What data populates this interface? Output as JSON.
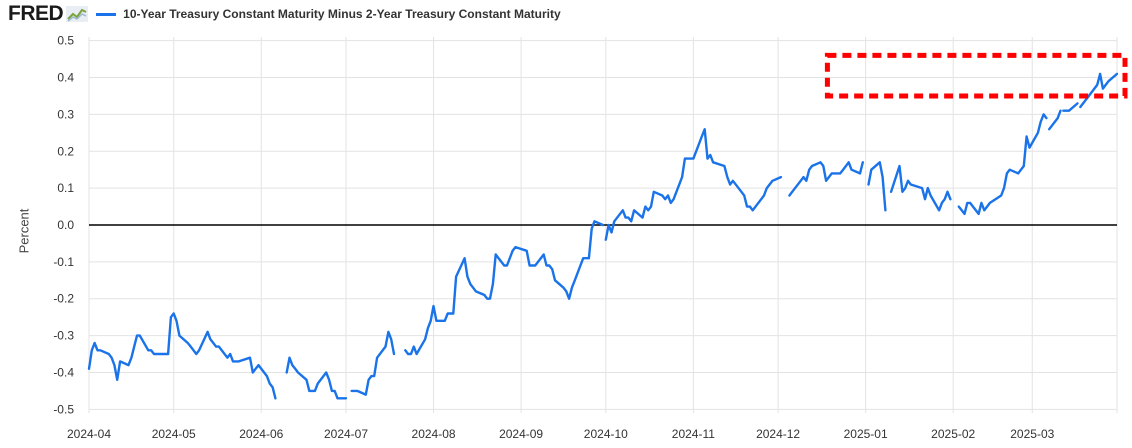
{
  "header": {
    "logo": "FRED",
    "logo_icon": "trend-graph-icon"
  },
  "colors": {
    "series": "#1a73e8",
    "grid": "#e3e3e3",
    "zero_line": "#000000",
    "highlight": "#ff0000"
  },
  "chart_data": {
    "type": "line",
    "title": "",
    "xlabel": "",
    "ylabel": "Percent",
    "ylim": [
      -0.51,
      0.51
    ],
    "xlim": [
      "2024-04-01",
      "2025-03-31"
    ],
    "grid": true,
    "legend": "top-left",
    "zero_line": 0.0,
    "yticks": [
      "0.5",
      "0.4",
      "0.3",
      "0.2",
      "0.1",
      "0.0",
      "-0.1",
      "-0.2",
      "-0.3",
      "-0.4",
      "-0.5"
    ],
    "ytick_values": [
      0.5,
      0.4,
      0.3,
      0.2,
      0.1,
      0.0,
      -0.1,
      -0.2,
      -0.3,
      -0.4,
      -0.5
    ],
    "xticks": [
      "2024-04",
      "2024-05",
      "2024-06",
      "2024-07",
      "2024-08",
      "2024-09",
      "2024-10",
      "2024-11",
      "2024-12",
      "2025-01",
      "2025-02",
      "2025-03"
    ],
    "xtick_dates": [
      "2024-04-01",
      "2024-05-01",
      "2024-06-01",
      "2024-07-01",
      "2024-08-01",
      "2024-09-01",
      "2024-10-01",
      "2024-11-01",
      "2024-12-01",
      "2025-01-01",
      "2025-02-01",
      "2025-03-01"
    ],
    "annotations": [
      {
        "type": "dashed-box",
        "label": "highlighted region",
        "x_start": "2024-12-22",
        "x_end": "2025-03-31",
        "y_low": 0.35,
        "y_high": 0.46
      }
    ],
    "series": [
      {
        "name": "10-Year Treasury Constant Maturity Minus 2-Year Treasury Constant Maturity",
        "points": [
          [
            "2024-04-01",
            -0.39
          ],
          [
            "2024-04-02",
            -0.34
          ],
          [
            "2024-04-03",
            -0.32
          ],
          [
            "2024-04-04",
            -0.34
          ],
          [
            "2024-04-05",
            -0.34
          ],
          [
            "2024-04-08",
            -0.35
          ],
          [
            "2024-04-09",
            -0.36
          ],
          [
            "2024-04-10",
            -0.38
          ],
          [
            "2024-04-11",
            -0.42
          ],
          [
            "2024-04-12",
            -0.37
          ],
          [
            "2024-04-15",
            -0.38
          ],
          [
            "2024-04-16",
            -0.36
          ],
          [
            "2024-04-17",
            -0.33
          ],
          [
            "2024-04-18",
            -0.3
          ],
          [
            "2024-04-19",
            -0.3
          ],
          [
            "2024-04-22",
            -0.34
          ],
          [
            "2024-04-23",
            -0.34
          ],
          [
            "2024-04-24",
            -0.35
          ],
          [
            "2024-04-25",
            -0.35
          ],
          [
            "2024-04-26",
            -0.35
          ],
          [
            "2024-04-29",
            -0.35
          ],
          [
            "2024-04-30",
            -0.25
          ],
          [
            "2024-05-01",
            -0.24
          ],
          [
            "2024-05-02",
            -0.26
          ],
          [
            "2024-05-03",
            -0.3
          ],
          [
            "2024-05-06",
            -0.32
          ],
          [
            "2024-05-07",
            -0.33
          ],
          [
            "2024-05-08",
            -0.34
          ],
          [
            "2024-05-09",
            -0.35
          ],
          [
            "2024-05-10",
            -0.34
          ],
          [
            "2024-05-13",
            -0.29
          ],
          [
            "2024-05-14",
            -0.31
          ],
          [
            "2024-05-15",
            -0.32
          ],
          [
            "2024-05-16",
            -0.33
          ],
          [
            "2024-05-17",
            -0.33
          ],
          [
            "2024-05-20",
            -0.36
          ],
          [
            "2024-05-21",
            -0.35
          ],
          [
            "2024-05-22",
            -0.37
          ],
          [
            "2024-05-23",
            -0.37
          ],
          [
            "2024-05-24",
            -0.37
          ],
          [
            "2024-05-28",
            -0.36
          ],
          [
            "2024-05-29",
            -0.4
          ],
          [
            "2024-05-30",
            -0.39
          ],
          [
            "2024-05-31",
            -0.38
          ],
          [
            "2024-06-03",
            -0.41
          ],
          [
            "2024-06-04",
            -0.43
          ],
          [
            "2024-06-05",
            -0.44
          ],
          [
            "2024-06-06",
            -0.47
          ],
          null,
          [
            "2024-06-10",
            -0.4
          ],
          [
            "2024-06-11",
            -0.36
          ],
          [
            "2024-06-12",
            -0.38
          ],
          [
            "2024-06-13",
            -0.39
          ],
          [
            "2024-06-14",
            -0.4
          ],
          [
            "2024-06-17",
            -0.42
          ],
          [
            "2024-06-18",
            -0.45
          ],
          [
            "2024-06-20",
            -0.45
          ],
          [
            "2024-06-21",
            -0.43
          ],
          [
            "2024-06-24",
            -0.4
          ],
          [
            "2024-06-25",
            -0.42
          ],
          [
            "2024-06-26",
            -0.45
          ],
          [
            "2024-06-27",
            -0.45
          ],
          [
            "2024-06-28",
            -0.47
          ],
          [
            "2024-07-01",
            -0.47
          ],
          null,
          [
            "2024-07-03",
            -0.45
          ],
          [
            "2024-07-05",
            -0.45
          ],
          [
            "2024-07-08",
            -0.46
          ],
          [
            "2024-07-09",
            -0.42
          ],
          [
            "2024-07-10",
            -0.41
          ],
          [
            "2024-07-11",
            -0.41
          ],
          [
            "2024-07-12",
            -0.36
          ],
          [
            "2024-07-15",
            -0.33
          ],
          [
            "2024-07-16",
            -0.29
          ],
          [
            "2024-07-17",
            -0.31
          ],
          [
            "2024-07-18",
            -0.35
          ],
          null,
          [
            "2024-07-22",
            -0.34
          ],
          [
            "2024-07-23",
            -0.35
          ],
          [
            "2024-07-24",
            -0.35
          ],
          [
            "2024-07-25",
            -0.33
          ],
          [
            "2024-07-26",
            -0.35
          ],
          [
            "2024-07-29",
            -0.31
          ],
          [
            "2024-07-30",
            -0.28
          ],
          [
            "2024-07-31",
            -0.26
          ],
          [
            "2024-08-01",
            -0.22
          ],
          [
            "2024-08-02",
            -0.26
          ],
          [
            "2024-08-05",
            -0.26
          ],
          [
            "2024-08-06",
            -0.24
          ],
          [
            "2024-08-07",
            -0.24
          ],
          [
            "2024-08-08",
            -0.24
          ],
          [
            "2024-08-09",
            -0.14
          ],
          [
            "2024-08-12",
            -0.09
          ],
          [
            "2024-08-13",
            -0.14
          ],
          [
            "2024-08-14",
            -0.16
          ],
          [
            "2024-08-15",
            -0.17
          ],
          [
            "2024-08-16",
            -0.18
          ],
          [
            "2024-08-19",
            -0.19
          ],
          [
            "2024-08-20",
            -0.2
          ],
          [
            "2024-08-21",
            -0.2
          ],
          [
            "2024-08-22",
            -0.16
          ],
          [
            "2024-08-23",
            -0.08
          ],
          [
            "2024-08-26",
            -0.11
          ],
          [
            "2024-08-27",
            -0.11
          ],
          [
            "2024-08-28",
            -0.09
          ],
          [
            "2024-08-29",
            -0.07
          ],
          [
            "2024-08-30",
            -0.06
          ],
          [
            "2024-09-03",
            -0.07
          ],
          [
            "2024-09-04",
            -0.11
          ],
          [
            "2024-09-05",
            -0.11
          ],
          [
            "2024-09-06",
            -0.11
          ],
          [
            "2024-09-09",
            -0.08
          ],
          [
            "2024-09-10",
            -0.11
          ],
          [
            "2024-09-11",
            -0.11
          ],
          [
            "2024-09-12",
            -0.12
          ],
          [
            "2024-09-13",
            -0.15
          ],
          [
            "2024-09-16",
            -0.17
          ],
          [
            "2024-09-17",
            -0.18
          ],
          [
            "2024-09-18",
            -0.2
          ],
          [
            "2024-09-19",
            -0.17
          ],
          [
            "2024-09-20",
            -0.15
          ],
          [
            "2024-09-23",
            -0.09
          ],
          [
            "2024-09-24",
            -0.09
          ],
          [
            "2024-09-25",
            -0.09
          ],
          [
            "2024-09-26",
            -0.01
          ],
          [
            "2024-09-27",
            0.01
          ],
          [
            "2024-09-30",
            0.0
          ],
          null,
          [
            "2024-10-01",
            -0.04
          ],
          [
            "2024-10-02",
            0.0
          ],
          [
            "2024-10-03",
            -0.02
          ],
          [
            "2024-10-04",
            0.01
          ],
          [
            "2024-10-07",
            0.04
          ],
          [
            "2024-10-08",
            0.02
          ],
          [
            "2024-10-09",
            0.02
          ],
          [
            "2024-10-10",
            0.01
          ],
          [
            "2024-10-11",
            0.04
          ],
          [
            "2024-10-14",
            0.02
          ],
          [
            "2024-10-15",
            0.05
          ],
          [
            "2024-10-16",
            0.04
          ],
          [
            "2024-10-17",
            0.05
          ],
          [
            "2024-10-18",
            0.09
          ],
          [
            "2024-10-21",
            0.08
          ],
          [
            "2024-10-22",
            0.07
          ],
          [
            "2024-10-23",
            0.08
          ],
          [
            "2024-10-24",
            0.06
          ],
          [
            "2024-10-25",
            0.07
          ],
          [
            "2024-10-28",
            0.13
          ],
          [
            "2024-10-29",
            0.18
          ],
          [
            "2024-10-30",
            0.18
          ],
          [
            "2024-10-31",
            0.18
          ],
          [
            "2024-11-01",
            0.18
          ],
          [
            "2024-11-04",
            0.24
          ],
          [
            "2024-11-05",
            0.26
          ],
          [
            "2024-11-06",
            0.18
          ],
          [
            "2024-11-07",
            0.19
          ],
          [
            "2024-11-08",
            0.17
          ],
          [
            "2024-11-12",
            0.16
          ],
          [
            "2024-11-13",
            0.13
          ],
          [
            "2024-11-14",
            0.11
          ],
          [
            "2024-11-15",
            0.12
          ],
          [
            "2024-11-18",
            0.09
          ],
          [
            "2024-11-19",
            0.08
          ],
          [
            "2024-11-20",
            0.05
          ],
          [
            "2024-11-21",
            0.05
          ],
          [
            "2024-11-22",
            0.04
          ],
          [
            "2024-11-25",
            0.07
          ],
          [
            "2024-11-26",
            0.08
          ],
          [
            "2024-11-27",
            0.1
          ],
          [
            "2024-11-29",
            0.12
          ],
          [
            "2024-12-02",
            0.13
          ],
          null,
          [
            "2024-12-05",
            0.08
          ],
          [
            "2024-12-06",
            0.09
          ],
          [
            "2024-12-09",
            0.12
          ],
          [
            "2024-12-10",
            0.13
          ],
          [
            "2024-12-11",
            0.12
          ],
          [
            "2024-12-12",
            0.15
          ],
          [
            "2024-12-13",
            0.16
          ],
          [
            "2024-12-16",
            0.17
          ],
          [
            "2024-12-17",
            0.16
          ],
          [
            "2024-12-18",
            0.12
          ],
          [
            "2024-12-19",
            0.13
          ],
          [
            "2024-12-20",
            0.14
          ],
          [
            "2024-12-23",
            0.14
          ],
          [
            "2024-12-24",
            0.15
          ],
          [
            "2024-12-26",
            0.17
          ],
          [
            "2024-12-27",
            0.15
          ],
          [
            "2024-12-30",
            0.14
          ],
          [
            "2024-12-31",
            0.17
          ],
          null,
          [
            "2025-01-02",
            0.11
          ],
          [
            "2025-01-03",
            0.15
          ],
          [
            "2025-01-06",
            0.17
          ],
          [
            "2025-01-07",
            0.13
          ],
          [
            "2025-01-08",
            0.04
          ],
          null,
          [
            "2025-01-10",
            0.09
          ],
          [
            "2025-01-13",
            0.16
          ],
          [
            "2025-01-14",
            0.09
          ],
          [
            "2025-01-15",
            0.1
          ],
          [
            "2025-01-16",
            0.12
          ],
          [
            "2025-01-17",
            0.11
          ],
          [
            "2025-01-21",
            0.1
          ],
          [
            "2025-01-22",
            0.07
          ],
          [
            "2025-01-23",
            0.1
          ],
          [
            "2025-01-24",
            0.08
          ],
          [
            "2025-01-27",
            0.04
          ],
          [
            "2025-01-28",
            0.06
          ],
          [
            "2025-01-29",
            0.07
          ],
          [
            "2025-01-30",
            0.09
          ],
          [
            "2025-01-31",
            0.07
          ],
          null,
          [
            "2025-02-03",
            0.05
          ],
          [
            "2025-02-04",
            0.04
          ],
          [
            "2025-02-05",
            0.03
          ],
          [
            "2025-02-06",
            0.06
          ],
          [
            "2025-02-07",
            0.06
          ],
          [
            "2025-02-10",
            0.03
          ],
          [
            "2025-02-11",
            0.06
          ],
          [
            "2025-02-12",
            0.04
          ],
          [
            "2025-02-13",
            0.05
          ],
          [
            "2025-02-14",
            0.06
          ],
          [
            "2025-02-18",
            0.08
          ],
          [
            "2025-02-19",
            0.1
          ],
          [
            "2025-02-20",
            0.14
          ],
          [
            "2025-02-21",
            0.15
          ],
          [
            "2025-02-24",
            0.14
          ],
          [
            "2025-02-25",
            0.15
          ],
          [
            "2025-02-26",
            0.16
          ],
          [
            "2025-02-27",
            0.24
          ],
          [
            "2025-02-28",
            0.21
          ],
          [
            "2025-03-03",
            0.25
          ],
          [
            "2025-03-04",
            0.28
          ],
          [
            "2025-03-05",
            0.3
          ],
          [
            "2025-03-06",
            0.29
          ],
          null,
          [
            "2025-03-07",
            0.26
          ],
          [
            "2025-03-10",
            0.29
          ],
          [
            "2025-03-11",
            0.31
          ],
          null,
          [
            "2025-03-12",
            0.31
          ],
          [
            "2025-03-13",
            0.31
          ],
          [
            "2025-03-14",
            0.31
          ],
          [
            "2025-03-17",
            0.33
          ],
          null,
          [
            "2025-03-18",
            0.32
          ],
          [
            "2025-03-19",
            0.33
          ],
          [
            "2025-03-20",
            0.34
          ],
          [
            "2025-03-21",
            0.35
          ],
          [
            "2025-03-24",
            0.38
          ],
          [
            "2025-03-25",
            0.41
          ],
          [
            "2025-03-26",
            0.37
          ],
          [
            "2025-03-27",
            0.38
          ],
          [
            "2025-03-28",
            0.39
          ],
          [
            "2025-03-31",
            0.41
          ]
        ]
      }
    ]
  }
}
